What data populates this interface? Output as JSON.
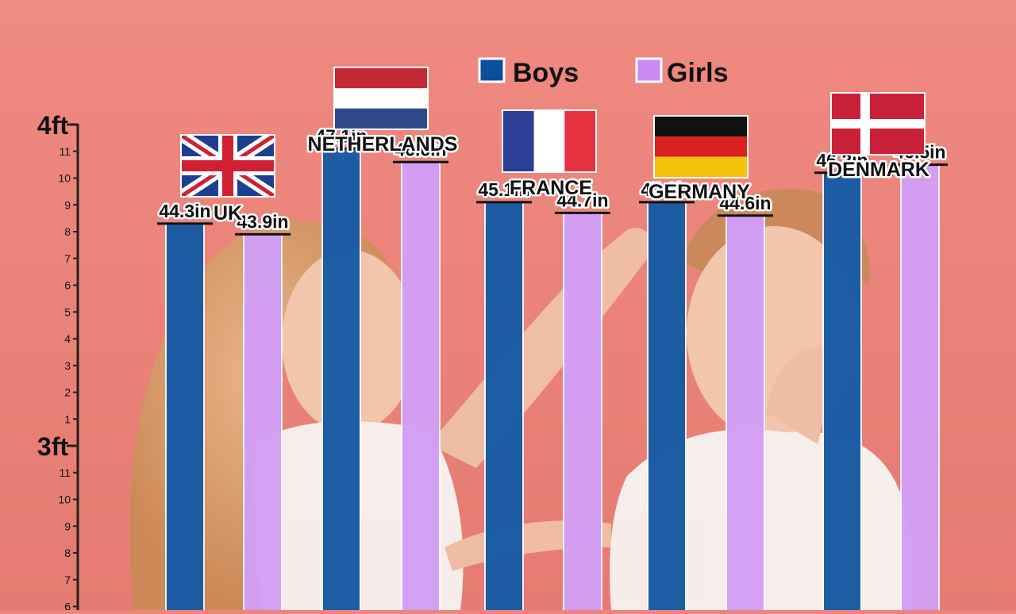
{
  "chart_data": {
    "type": "bar",
    "categories": [
      "UK",
      "NETHERLANDS",
      "FRANCE",
      "GERMANY",
      "DENMARK"
    ],
    "series": [
      {
        "name": "Boys",
        "color": "#0a4f9c",
        "values": [
          44.3,
          47.1,
          45.1,
          45.1,
          46.2
        ],
        "labels": [
          "44.3in",
          "47.1in",
          "45.1in",
          "45.1in",
          "46.2in"
        ]
      },
      {
        "name": "Girls",
        "color": "#c98bf2",
        "values": [
          43.9,
          46.6,
          44.7,
          44.6,
          46.5
        ],
        "labels": [
          "43.9in",
          "46.6in",
          "44.7in",
          "44.6in",
          "46.5in"
        ]
      }
    ],
    "y_ticks": {
      "major": [
        {
          "label": "4ft",
          "value": 48
        },
        {
          "label": "3ft",
          "value": 36
        }
      ],
      "minor": [
        {
          "label": "11",
          "value": 47
        },
        {
          "label": "10",
          "value": 46
        },
        {
          "label": "9",
          "value": 45
        },
        {
          "label": "8",
          "value": 44
        },
        {
          "label": "7",
          "value": 43
        },
        {
          "label": "6",
          "value": 42
        },
        {
          "label": "5",
          "value": 41
        },
        {
          "label": "4",
          "value": 40
        },
        {
          "label": "3",
          "value": 39
        },
        {
          "label": "2",
          "value": 38
        },
        {
          "label": "1",
          "value": 37
        },
        {
          "label": "11",
          "value": 35
        },
        {
          "label": "10",
          "value": 34
        },
        {
          "label": "9",
          "value": 33
        },
        {
          "label": "8",
          "value": 32
        },
        {
          "label": "7",
          "value": 31
        },
        {
          "label": "6",
          "value": 30
        }
      ]
    },
    "ylim": [
      30,
      48.3
    ],
    "unit": "in",
    "legend_position": "top-right",
    "flags": [
      "uk-flag",
      "netherlands-flag",
      "france-flag",
      "germany-flag",
      "denmark-flag"
    ]
  }
}
